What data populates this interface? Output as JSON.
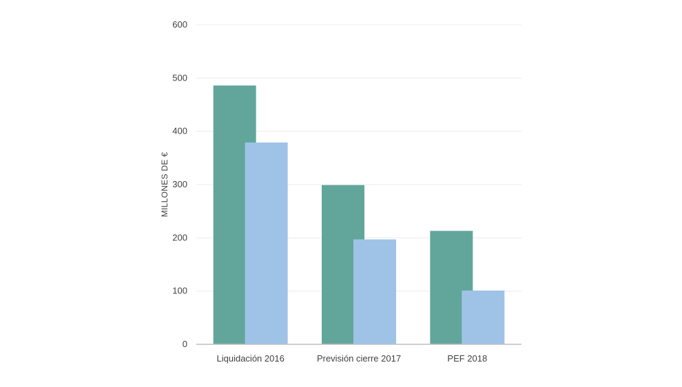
{
  "chart_data": {
    "type": "bar",
    "categories": [
      "Liquidación 2016",
      "Previsión cierre 2017",
      "PEF 2018"
    ],
    "series": [
      {
        "values": [
          486,
          299,
          213
        ],
        "color": "#62a69b"
      },
      {
        "values": [
          379,
          197,
          101
        ],
        "color": "#9fc3e7"
      }
    ],
    "title": "",
    "xlabel": "",
    "ylabel": "MILLONES DE €",
    "ylim": [
      0,
      600
    ],
    "yticks": [
      0,
      100,
      200,
      300,
      400,
      500,
      600
    ],
    "grid": true,
    "legend": "none"
  }
}
